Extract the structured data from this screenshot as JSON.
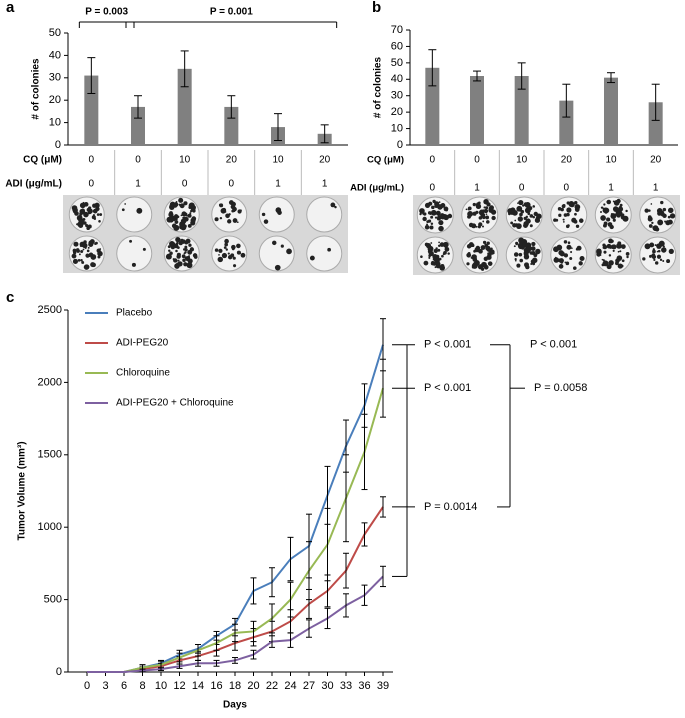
{
  "chart_data": [
    {
      "type": "bar",
      "panel": "a",
      "ylabel": "# of colonies",
      "values": [
        31,
        17,
        34,
        17,
        8,
        5
      ],
      "errors": [
        8,
        5,
        8,
        5,
        6,
        4
      ],
      "color": "#808080",
      "ylim": [
        0,
        50
      ],
      "yticks": [
        0,
        10,
        20,
        30,
        40,
        50
      ],
      "rows": [
        {
          "label": "CQ (μM)",
          "values": [
            0,
            0,
            10,
            20,
            10,
            20
          ]
        },
        {
          "label": "ADI (μg/mL)",
          "values": [
            0,
            1,
            0,
            0,
            1,
            1
          ]
        }
      ],
      "annotations": [
        "P = 0.003",
        "P = 0.001"
      ]
    },
    {
      "type": "bar",
      "panel": "b",
      "ylabel": "# of colonies",
      "values": [
        47,
        42,
        42,
        27,
        41,
        26
      ],
      "errors": [
        11,
        3,
        8,
        10,
        3,
        11
      ],
      "color": "#808080",
      "ylim": [
        0,
        70
      ],
      "yticks": [
        0,
        10,
        20,
        30,
        40,
        50,
        60,
        70
      ],
      "rows": [
        {
          "label": "CQ (μM)",
          "values": [
            0,
            0,
            10,
            20,
            10,
            20
          ]
        },
        {
          "label": "ADI (μg/mL)",
          "values": [
            0,
            1,
            0,
            0,
            1,
            1
          ]
        }
      ],
      "annotations": []
    },
    {
      "type": "line",
      "panel": "c",
      "xlabel": "Days",
      "ylabel": "Tumor Volume (mm³)",
      "categories": [
        0,
        3,
        6,
        8,
        10,
        12,
        14,
        16,
        18,
        20,
        22,
        24,
        27,
        30,
        33,
        36,
        39
      ],
      "ylim": [
        0,
        2500
      ],
      "yticks": [
        0,
        500,
        1000,
        1500,
        2000,
        2500
      ],
      "series": [
        {
          "name": "Placebo",
          "color": "#4a7ebb",
          "values": [
            0,
            0,
            0,
            30,
            60,
            120,
            160,
            250,
            330,
            560,
            620,
            780,
            870,
            1220,
            1560,
            1840,
            2260
          ],
          "errors": [
            0,
            0,
            0,
            20,
            20,
            30,
            30,
            30,
            40,
            90,
            100,
            150,
            220,
            200,
            180,
            150,
            180
          ]
        },
        {
          "name": "ADI-PEG20",
          "color": "#be4b48",
          "values": [
            0,
            0,
            0,
            20,
            40,
            80,
            110,
            150,
            200,
            240,
            280,
            350,
            470,
            560,
            700,
            950,
            1140
          ],
          "errors": [
            0,
            0,
            0,
            15,
            20,
            25,
            30,
            40,
            50,
            60,
            70,
            80,
            100,
            110,
            120,
            80,
            70
          ]
        },
        {
          "name": "Chloroquine",
          "color": "#98b954",
          "values": [
            0,
            0,
            0,
            30,
            50,
            100,
            150,
            200,
            270,
            280,
            370,
            500,
            700,
            880,
            1200,
            1520,
            1960
          ],
          "errors": [
            0,
            0,
            0,
            20,
            25,
            30,
            40,
            50,
            60,
            70,
            100,
            120,
            200,
            250,
            300,
            260,
            200
          ]
        },
        {
          "name": "ADI-PEG20 + Chloroquine",
          "color": "#7d60a0",
          "values": [
            0,
            0,
            0,
            10,
            20,
            40,
            60,
            60,
            80,
            120,
            210,
            220,
            300,
            370,
            460,
            530,
            660
          ],
          "errors": [
            0,
            0,
            0,
            10,
            10,
            15,
            20,
            20,
            20,
            30,
            40,
            50,
            60,
            70,
            80,
            70,
            70
          ]
        }
      ],
      "annotations": [
        "P < 0.001",
        "P < 0.001",
        "P < 0.001",
        "P = 0.0058",
        "P = 0.0014"
      ]
    }
  ]
}
